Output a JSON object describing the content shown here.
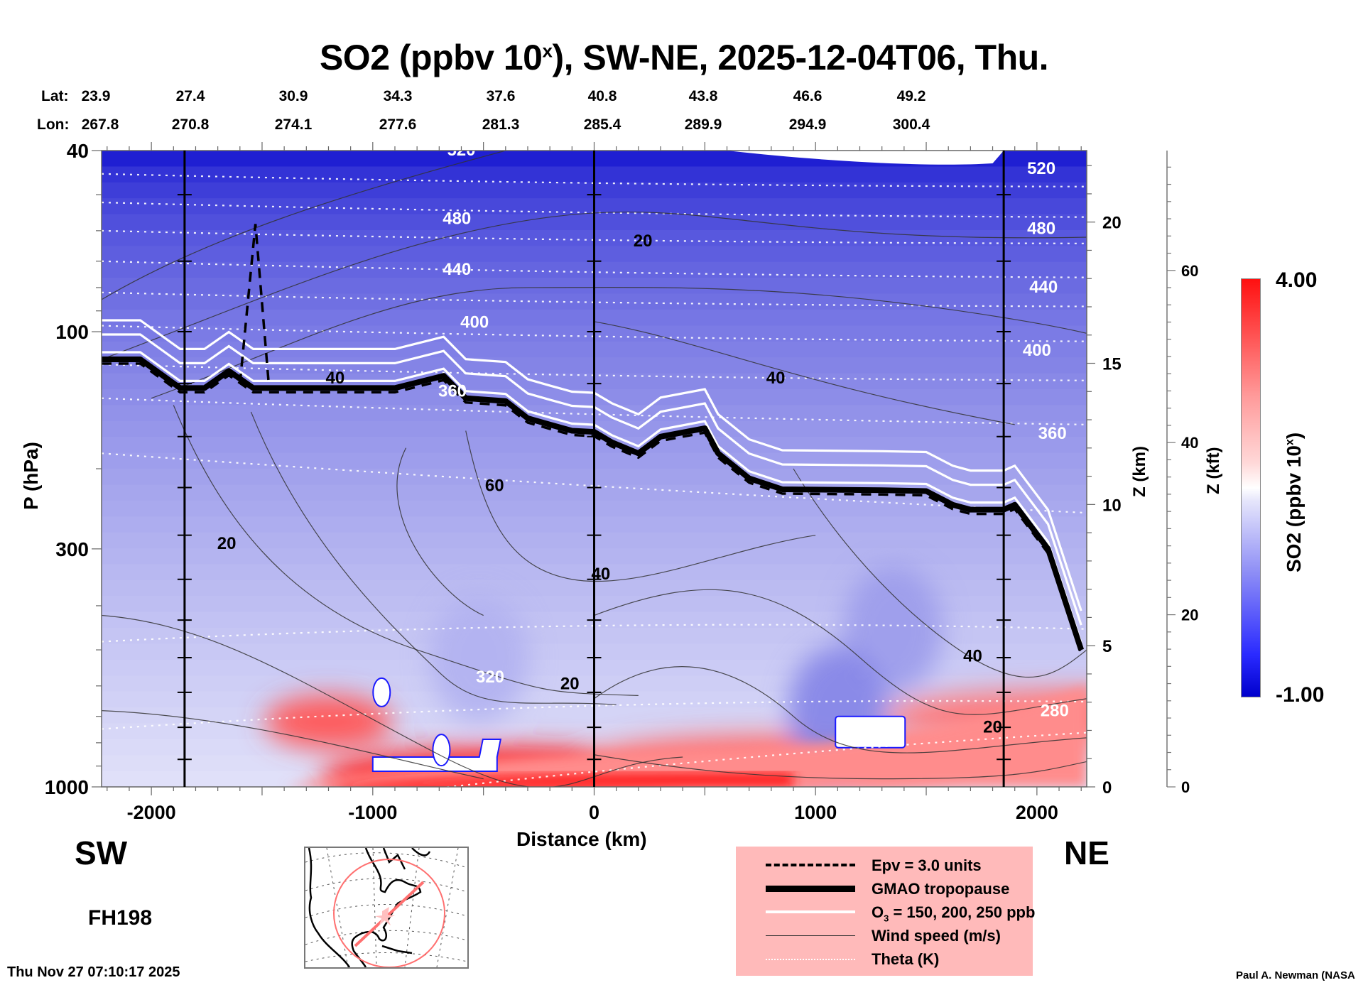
{
  "chart_data": {
    "type": "heatmap",
    "title": "SO2 (ppbv 10",
    "title_sup": "x",
    "title_rest": "), SW-NE, 2025-12-04T06, Thu.",
    "xlabel": "Distance (km)",
    "ylabel": "P (hPa)",
    "y2label": "Z (km)",
    "y3label": "Z (kft)",
    "xlim": [
      -2225,
      2225
    ],
    "ylim": [
      1000,
      40
    ],
    "yscale": "log",
    "x_ticks": [
      -2000,
      -1000,
      0,
      1000,
      2000
    ],
    "x_tick_labels": [
      "-2000",
      "-1000",
      "0",
      "1000",
      "2000"
    ],
    "y_ticks": [
      40,
      100,
      300,
      1000
    ],
    "y_tick_labels": [
      "40",
      "100",
      "300",
      "1000"
    ],
    "z_km_ticks": [
      0,
      5,
      10,
      15,
      20
    ],
    "z_km_tick_labels": [
      "0",
      "5",
      "10",
      "15",
      "20"
    ],
    "z_kft_ticks": [
      0,
      20,
      40,
      60
    ],
    "z_kft_tick_labels": [
      "0",
      "20",
      "40",
      "60"
    ],
    "lat_label": "Lat:",
    "lon_label": "Lon:",
    "lat": [
      "23.9",
      "27.4",
      "30.9",
      "34.3",
      "37.6",
      "40.8",
      "43.8",
      "46.6",
      "49.2"
    ],
    "lon": [
      "267.8",
      "270.8",
      "274.1",
      "277.6",
      "281.3",
      "285.4",
      "289.9",
      "294.9",
      "300.4"
    ],
    "vertical_marker_lines_km": [
      -1850,
      0,
      1850
    ],
    "colorbar": {
      "label": "SO2 (ppbv 10",
      "label_sup": "x",
      "label_rest": ")",
      "min": -1.0,
      "max": 4.0,
      "min_label": "-1.00",
      "max_label": "4.00",
      "low_color": "#0000cc",
      "mid_color": "#ffffff",
      "high_color": "#ff1010"
    },
    "theta_contours_K": [
      280,
      320,
      360,
      400,
      440,
      480,
      520
    ],
    "theta_labels": [
      {
        "text": "520",
        "x_km": -600,
        "p": 41
      },
      {
        "text": "480",
        "x_km": -620,
        "p": 58
      },
      {
        "text": "440",
        "x_km": -620,
        "p": 75
      },
      {
        "text": "400",
        "x_km": -540,
        "p": 98
      },
      {
        "text": "360",
        "x_km": -640,
        "p": 139
      },
      {
        "text": "320",
        "x_km": -470,
        "p": 590
      },
      {
        "text": "520",
        "x_km": 2020,
        "p": 45
      },
      {
        "text": "480",
        "x_km": 2020,
        "p": 61
      },
      {
        "text": "440",
        "x_km": 2030,
        "p": 82
      },
      {
        "text": "400",
        "x_km": 2000,
        "p": 113
      },
      {
        "text": "360",
        "x_km": 2070,
        "p": 172
      },
      {
        "text": "280",
        "x_km": 2080,
        "p": 700
      }
    ],
    "wind_speed_contours_ms": [
      20,
      40,
      60
    ],
    "wind_labels": [
      {
        "text": "20",
        "x_km": 220,
        "p": 65
      },
      {
        "text": "40",
        "x_km": 820,
        "p": 130
      },
      {
        "text": "60",
        "x_km": -450,
        "p": 224
      },
      {
        "text": "40",
        "x_km": 30,
        "p": 350
      },
      {
        "text": "20",
        "x_km": -1660,
        "p": 300
      },
      {
        "text": "20",
        "x_km": -110,
        "p": 610
      },
      {
        "text": "40",
        "x_km": -1170,
        "p": 130
      },
      {
        "text": "40",
        "x_km": 1710,
        "p": 530
      },
      {
        "text": "20",
        "x_km": 1800,
        "p": 760
      }
    ],
    "tropopause_km_hpa": [
      [
        -2225,
        115
      ],
      [
        -2050,
        115
      ],
      [
        -1870,
        133
      ],
      [
        -1760,
        133
      ],
      [
        -1650,
        122
      ],
      [
        -1540,
        133
      ],
      [
        -900,
        133
      ],
      [
        -680,
        125
      ],
      [
        -580,
        140
      ],
      [
        -400,
        142
      ],
      [
        -300,
        155
      ],
      [
        -200,
        160
      ],
      [
        -100,
        165
      ],
      [
        0,
        166
      ],
      [
        80,
        175
      ],
      [
        200,
        185
      ],
      [
        300,
        170
      ],
      [
        500,
        163
      ],
      [
        560,
        185
      ],
      [
        700,
        210
      ],
      [
        850,
        222
      ],
      [
        1300,
        223
      ],
      [
        1500,
        224
      ],
      [
        1620,
        240
      ],
      [
        1700,
        246
      ],
      [
        1850,
        246
      ],
      [
        1900,
        240
      ],
      [
        2050,
        300
      ],
      [
        2200,
        500
      ]
    ],
    "so2_blobs": [
      {
        "x_km": -1200,
        "p": 720,
        "value": 2.6
      },
      {
        "x_km": -400,
        "p": 960,
        "value": 3.8
      },
      {
        "x_km": 800,
        "p": 880,
        "value": 2.2
      },
      {
        "x_km": 2150,
        "p": 700,
        "value": 2.0
      },
      {
        "x_km": -520,
        "p": 520,
        "value": -0.4
      },
      {
        "x_km": 1350,
        "p": 450,
        "value": -0.5
      },
      {
        "x_km": 1100,
        "p": 680,
        "value": -0.6
      }
    ]
  },
  "legend": {
    "items": [
      {
        "label": "Epv = 3.0 units",
        "style": "dashed"
      },
      {
        "label": "GMAO tropopause",
        "style": "thick"
      },
      {
        "label": "O",
        "sub": "3",
        "label_rest": " = 150, 200, 250 ppb",
        "style": "white"
      },
      {
        "label": "Wind speed (m/s)",
        "style": "thin"
      },
      {
        "label": "Theta (K)",
        "style": "dotted"
      }
    ]
  },
  "footer": {
    "sw": "SW",
    "ne": "NE",
    "forecast_hour": "FH198",
    "timestamp": "Thu Nov 27 07:10:17 2025",
    "credit": "Paul A. Newman (NASA"
  }
}
